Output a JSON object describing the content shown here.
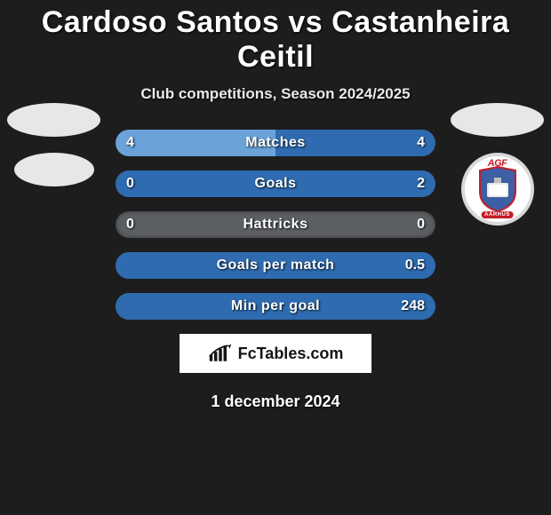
{
  "title": "Cardoso Santos vs Castanheira Ceitil",
  "subtitle": "Club competitions, Season 2024/2025",
  "date": "1 december 2024",
  "brand": "FcTables.com",
  "left_color": "#6aa2d9",
  "right_color": "#2e6bb0",
  "ellipse_color": "#e7e7e7",
  "stats": [
    {
      "label": "Matches",
      "l": "4",
      "r": "4",
      "lf": 50,
      "rf": 50
    },
    {
      "label": "Goals",
      "l": "0",
      "r": "2",
      "lf": 0,
      "rf": 100
    },
    {
      "label": "Hattricks",
      "l": "0",
      "r": "0",
      "lf": 0,
      "rf": 0
    },
    {
      "label": "Goals per match",
      "l": "",
      "r": "0.5",
      "lf": 0,
      "rf": 100
    },
    {
      "label": "Min per goal",
      "l": "",
      "r": "248",
      "lf": 0,
      "rf": 100
    }
  ],
  "club_badge": {
    "top_text": "AGF",
    "bottom_text": "AARHUS",
    "shield_fill": "#3d5fa3",
    "shield_stroke": "#c61c28",
    "accent": "#c61c28"
  }
}
